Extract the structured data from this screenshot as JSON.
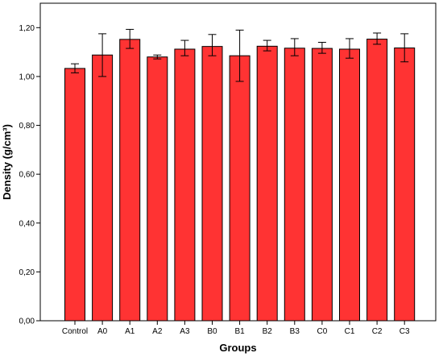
{
  "chart_data": {
    "type": "bar",
    "title": "",
    "xlabel": "Groups",
    "ylabel": "Density (g/cm³)",
    "ylim": [
      0,
      1.3
    ],
    "yticks": [
      "0,00",
      "0,20",
      "0,40",
      "0,60",
      "0,80",
      "1,00",
      "1,20"
    ],
    "ytick_values": [
      0,
      0.2,
      0.4,
      0.6,
      0.8,
      1.0,
      1.2
    ],
    "categories": [
      "Control",
      "A0",
      "A1",
      "A2",
      "A3",
      "B0",
      "B1",
      "B2",
      "B3",
      "C0",
      "C1",
      "C2",
      "C3"
    ],
    "values": [
      1.033,
      1.088,
      1.152,
      1.08,
      1.112,
      1.123,
      1.085,
      1.124,
      1.116,
      1.115,
      1.112,
      1.153,
      1.117
    ],
    "error_low": [
      1.015,
      1.0,
      1.115,
      1.072,
      1.085,
      1.085,
      0.98,
      1.105,
      1.085,
      1.095,
      1.075,
      1.132,
      1.06
    ],
    "error_high": [
      1.052,
      1.175,
      1.193,
      1.088,
      1.148,
      1.172,
      1.19,
      1.148,
      1.155,
      1.14,
      1.155,
      1.178,
      1.175
    ],
    "bar_color": "#ff3333",
    "grid": false,
    "legend": "none"
  }
}
